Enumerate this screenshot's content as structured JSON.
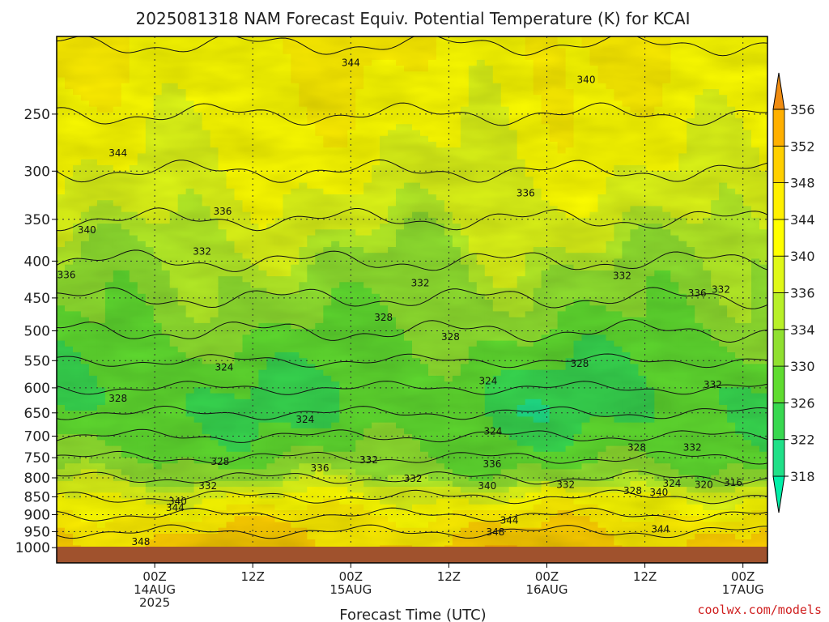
{
  "chart_data": {
    "type": "heatmap",
    "title": "2025081318 NAM Forecast Equiv. Potential Temperature (K) for KCAI",
    "xlabel": "Forecast Time (UTC)",
    "ylabel": "",
    "credit": "coolwx.com/models",
    "y_scale": "log-pressure",
    "ylim": [
      1000,
      200
    ],
    "y_ticks": [
      250,
      300,
      350,
      400,
      450,
      500,
      550,
      600,
      650,
      700,
      750,
      800,
      850,
      900,
      950,
      1000
    ],
    "x_range_hours": [
      -6,
      81
    ],
    "x_ticks": [
      {
        "hour": 6,
        "lines": [
          "00Z",
          "14AUG",
          "2025"
        ]
      },
      {
        "hour": 18,
        "lines": [
          "12Z"
        ]
      },
      {
        "hour": 30,
        "lines": [
          "00Z",
          "15AUG"
        ]
      },
      {
        "hour": 42,
        "lines": [
          "12Z"
        ]
      },
      {
        "hour": 54,
        "lines": [
          "00Z",
          "16AUG"
        ]
      },
      {
        "hour": 66,
        "lines": [
          "12Z"
        ]
      },
      {
        "hour": 78,
        "lines": [
          "00Z",
          "17AUG"
        ]
      }
    ],
    "colorbar": {
      "levels": [
        318,
        322,
        326,
        330,
        334,
        336,
        340,
        344,
        348,
        352,
        356
      ],
      "colors": [
        "#00f0a8",
        "#20e088",
        "#38d850",
        "#60dc30",
        "#90e030",
        "#b8f028",
        "#e0f818",
        "#ffff00",
        "#fff000",
        "#ffd000",
        "#ffb000",
        "#f08c10"
      ]
    },
    "layers": [
      {
        "p": 200,
        "theta": 344
      },
      {
        "p": 250,
        "theta": 342
      },
      {
        "p": 300,
        "theta": 340
      },
      {
        "p": 350,
        "theta": 337
      },
      {
        "p": 400,
        "theta": 334
      },
      {
        "p": 450,
        "theta": 332
      },
      {
        "p": 500,
        "theta": 330
      },
      {
        "p": 550,
        "theta": 328
      },
      {
        "p": 600,
        "theta": 326
      },
      {
        "p": 650,
        "theta": 326
      },
      {
        "p": 700,
        "theta": 328
      },
      {
        "p": 750,
        "theta": 330
      },
      {
        "p": 800,
        "theta": 334
      },
      {
        "p": 850,
        "theta": 340
      },
      {
        "p": 900,
        "theta": 345
      },
      {
        "p": 950,
        "theta": 348
      },
      {
        "p": 1000,
        "theta": 349
      }
    ],
    "contour_labels": [
      {
        "hour": 30.0,
        "p": 212,
        "text": "344"
      },
      {
        "hour": 58.8,
        "p": 224,
        "text": "340"
      },
      {
        "hour": 1.5,
        "p": 283,
        "text": "344"
      },
      {
        "hour": 51.4,
        "p": 322,
        "text": "336"
      },
      {
        "hour": 14.3,
        "p": 341,
        "text": "336"
      },
      {
        "hour": -2.3,
        "p": 362,
        "text": "340"
      },
      {
        "hour": 11.8,
        "p": 388,
        "text": "332"
      },
      {
        "hour": -4.8,
        "p": 418,
        "text": "336"
      },
      {
        "hour": 38.5,
        "p": 429,
        "text": "332"
      },
      {
        "hour": 63.2,
        "p": 419,
        "text": "332"
      },
      {
        "hour": 72.4,
        "p": 443,
        "text": "336"
      },
      {
        "hour": 75.3,
        "p": 438,
        "text": "332"
      },
      {
        "hour": 34.0,
        "p": 479,
        "text": "328"
      },
      {
        "hour": 42.2,
        "p": 510,
        "text": "328"
      },
      {
        "hour": 58.0,
        "p": 555,
        "text": "328"
      },
      {
        "hour": 14.5,
        "p": 562,
        "text": "324"
      },
      {
        "hour": 46.8,
        "p": 587,
        "text": "324"
      },
      {
        "hour": 74.3,
        "p": 594,
        "text": "332"
      },
      {
        "hour": 1.5,
        "p": 621,
        "text": "328"
      },
      {
        "hour": 24.4,
        "p": 664,
        "text": "324"
      },
      {
        "hour": 47.4,
        "p": 689,
        "text": "324"
      },
      {
        "hour": 65.0,
        "p": 726,
        "text": "328"
      },
      {
        "hour": 71.8,
        "p": 726,
        "text": "332"
      },
      {
        "hour": 14.0,
        "p": 760,
        "text": "328"
      },
      {
        "hour": 32.2,
        "p": 756,
        "text": "332"
      },
      {
        "hour": 26.2,
        "p": 776,
        "text": "336"
      },
      {
        "hour": 47.3,
        "p": 766,
        "text": "336"
      },
      {
        "hour": 37.6,
        "p": 802,
        "text": "332"
      },
      {
        "hour": 12.5,
        "p": 821,
        "text": "332"
      },
      {
        "hour": 46.7,
        "p": 821,
        "text": "340"
      },
      {
        "hour": 56.3,
        "p": 818,
        "text": "332"
      },
      {
        "hour": 69.3,
        "p": 815,
        "text": "324"
      },
      {
        "hour": 73.2,
        "p": 818,
        "text": "320"
      },
      {
        "hour": 76.8,
        "p": 812,
        "text": "316"
      },
      {
        "hour": 64.5,
        "p": 834,
        "text": "328"
      },
      {
        "hour": 67.7,
        "p": 838,
        "text": "340"
      },
      {
        "hour": 8.8,
        "p": 862,
        "text": "340"
      },
      {
        "hour": 8.5,
        "p": 880,
        "text": "344"
      },
      {
        "hour": 49.4,
        "p": 916,
        "text": "344"
      },
      {
        "hour": 47.7,
        "p": 951,
        "text": "348"
      },
      {
        "hour": 67.9,
        "p": 943,
        "text": "344"
      },
      {
        "hour": 4.3,
        "p": 981,
        "text": "348"
      }
    ]
  }
}
